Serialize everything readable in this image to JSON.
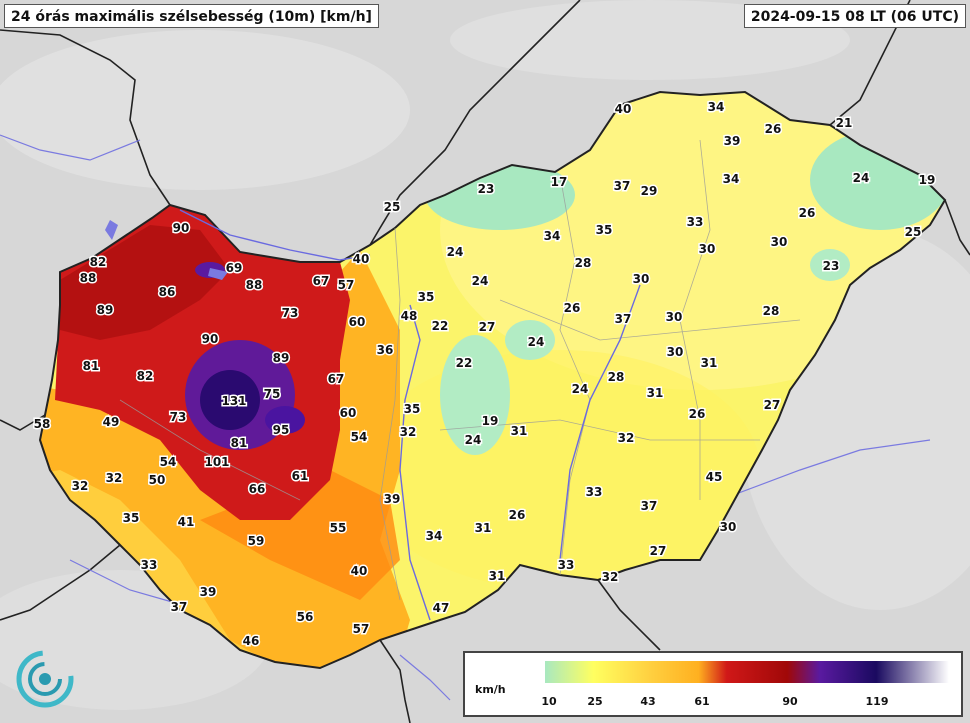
{
  "header": {
    "title": "24 órás maximális szélsebesség (10m) [km/h]",
    "timestamp": "2024-09-15 08 LT (06 UTC)"
  },
  "legend": {
    "unit": "km/h",
    "ticks": [
      "10",
      "25",
      "43",
      "61",
      "90",
      "119"
    ],
    "colors": [
      "#a8e8c0",
      "#ffff60",
      "#ffb020",
      "#d01818",
      "#5a1aa0",
      "#1a0a60",
      "#ffffff"
    ]
  },
  "colors": {
    "background": "#d9d9d9",
    "country_border": "#1a1a1a",
    "river": "#7a7ae0"
  },
  "stations": [
    {
      "v": "90",
      "c": "red"
    },
    {
      "v": "82",
      "c": "red"
    },
    {
      "v": "88",
      "c": "red"
    },
    {
      "v": "69",
      "c": "red"
    },
    {
      "v": "86",
      "c": "red"
    },
    {
      "v": "88",
      "c": "red"
    },
    {
      "v": "67",
      "c": "red"
    },
    {
      "v": "57",
      "c": "orange"
    },
    {
      "v": "89",
      "c": "red"
    },
    {
      "v": "73",
      "c": "red"
    },
    {
      "v": "90",
      "c": "red"
    },
    {
      "v": "60",
      "c": "orange"
    },
    {
      "v": "81",
      "c": "red"
    },
    {
      "v": "82",
      "c": "red"
    },
    {
      "v": "89",
      "c": "red"
    },
    {
      "v": "36",
      "c": "yellow"
    },
    {
      "v": "131",
      "c": "purple"
    },
    {
      "v": "75",
      "c": "red"
    },
    {
      "v": "67",
      "c": "red"
    },
    {
      "v": "73",
      "c": "red"
    },
    {
      "v": "58",
      "c": "orange"
    },
    {
      "v": "49",
      "c": "orange"
    },
    {
      "v": "81",
      "c": "red"
    },
    {
      "v": "95",
      "c": "purple"
    },
    {
      "v": "60",
      "c": "orange"
    },
    {
      "v": "54",
      "c": "orange"
    },
    {
      "v": "54",
      "c": "orange"
    },
    {
      "v": "101",
      "c": "purple"
    },
    {
      "v": "32",
      "c": "yellow"
    },
    {
      "v": "32",
      "c": "yellow"
    },
    {
      "v": "50",
      "c": "orange"
    },
    {
      "v": "61",
      "c": "red"
    },
    {
      "v": "66",
      "c": "red"
    },
    {
      "v": "39",
      "c": "yellow"
    },
    {
      "v": "35",
      "c": "yellow"
    },
    {
      "v": "41",
      "c": "yellow"
    },
    {
      "v": "55",
      "c": "orange"
    },
    {
      "v": "59",
      "c": "orange"
    },
    {
      "v": "33",
      "c": "yellow"
    },
    {
      "v": "40",
      "c": "yellow"
    },
    {
      "v": "39",
      "c": "yellow"
    },
    {
      "v": "37",
      "c": "yellow"
    },
    {
      "v": "56",
      "c": "orange"
    },
    {
      "v": "57",
      "c": "orange"
    },
    {
      "v": "46",
      "c": "orange"
    },
    {
      "v": "47",
      "c": "orange"
    },
    {
      "v": "34",
      "c": "yellow"
    },
    {
      "v": "31",
      "c": "yellow"
    },
    {
      "v": "26",
      "c": "yellow"
    },
    {
      "v": "31",
      "c": "yellow"
    },
    {
      "v": "33",
      "c": "yellow"
    },
    {
      "v": "32",
      "c": "yellow"
    },
    {
      "v": "27",
      "c": "yellow"
    },
    {
      "v": "30",
      "c": "yellow"
    },
    {
      "v": "37",
      "c": "yellow"
    },
    {
      "v": "33",
      "c": "yellow"
    },
    {
      "v": "45",
      "c": "orange"
    },
    {
      "v": "32",
      "c": "yellow"
    },
    {
      "v": "35",
      "c": "yellow"
    },
    {
      "v": "32",
      "c": "yellow"
    },
    {
      "v": "24",
      "c": "green"
    },
    {
      "v": "19",
      "c": "green"
    },
    {
      "v": "31",
      "c": "yellow"
    },
    {
      "v": "22",
      "c": "green"
    },
    {
      "v": "24",
      "c": "green"
    },
    {
      "v": "27",
      "c": "yellow"
    },
    {
      "v": "22",
      "c": "yellow"
    },
    {
      "v": "48",
      "c": "orange"
    },
    {
      "v": "35",
      "c": "yellow"
    },
    {
      "v": "40",
      "c": "yellow"
    },
    {
      "v": "25",
      "c": "yellow"
    },
    {
      "v": "24",
      "c": "yellow"
    },
    {
      "v": "24",
      "c": "yellow"
    },
    {
      "v": "23",
      "c": "green"
    },
    {
      "v": "17",
      "c": "green"
    },
    {
      "v": "34",
      "c": "yellow"
    },
    {
      "v": "35",
      "c": "yellow"
    },
    {
      "v": "28",
      "c": "yellow"
    },
    {
      "v": "26",
      "c": "yellow"
    },
    {
      "v": "37",
      "c": "yellow"
    },
    {
      "v": "30",
      "c": "yellow"
    },
    {
      "v": "29",
      "c": "yellow"
    },
    {
      "v": "37",
      "c": "yellow"
    },
    {
      "v": "30",
      "c": "yellow"
    },
    {
      "v": "28",
      "c": "yellow"
    },
    {
      "v": "31",
      "c": "yellow"
    },
    {
      "v": "26",
      "c": "yellow"
    },
    {
      "v": "24",
      "c": "yellow"
    },
    {
      "v": "30",
      "c": "yellow"
    },
    {
      "v": "31",
      "c": "yellow"
    },
    {
      "v": "28",
      "c": "yellow"
    },
    {
      "v": "33",
      "c": "yellow"
    },
    {
      "v": "30",
      "c": "yellow"
    },
    {
      "v": "30",
      "c": "yellow"
    },
    {
      "v": "26",
      "c": "yellow"
    },
    {
      "v": "34",
      "c": "yellow"
    },
    {
      "v": "39",
      "c": "yellow"
    },
    {
      "v": "34",
      "c": "yellow"
    },
    {
      "v": "40",
      "c": "yellow"
    },
    {
      "v": "27",
      "c": "yellow"
    },
    {
      "v": "26",
      "c": "yellow"
    },
    {
      "v": "21",
      "c": "green"
    },
    {
      "v": "24",
      "c": "yellow"
    },
    {
      "v": "19",
      "c": "green"
    },
    {
      "v": "25",
      "c": "green"
    },
    {
      "v": "23",
      "c": "green"
    }
  ]
}
